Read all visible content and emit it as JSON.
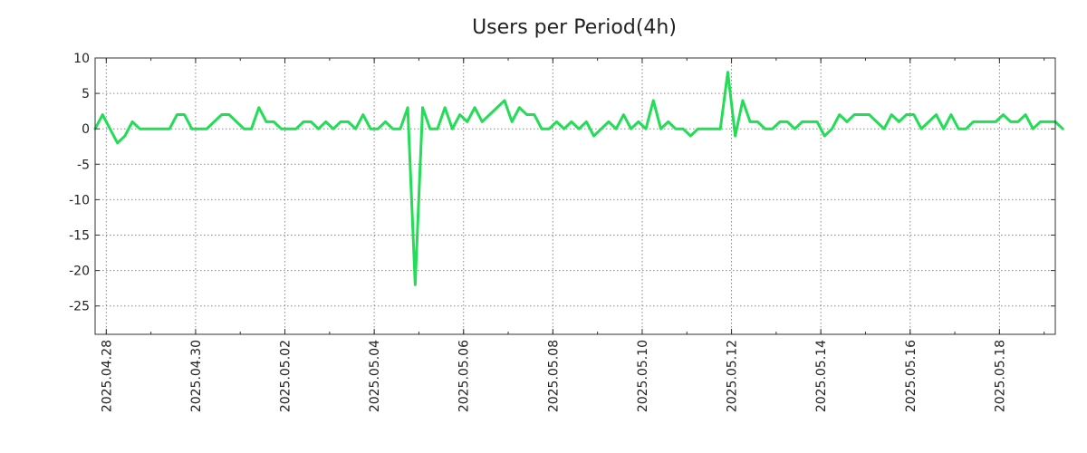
{
  "chart_data": {
    "type": "line",
    "title": "Users per Period(4h)",
    "xlabel": "",
    "ylabel": "",
    "x_start": "2025.04.27 18:00",
    "x_end": "2025.05.19 06:00",
    "period_hours": 4,
    "ylim": [
      -29,
      10
    ],
    "yticks": [
      10,
      5,
      0,
      -5,
      -10,
      -15,
      -20,
      -25
    ],
    "ytick_labels": [
      "10",
      "5",
      "0",
      "-5",
      "-10",
      "-15",
      "-20",
      "-25"
    ],
    "xticks": [
      "2025.04.28",
      "2025.04.30",
      "2025.05.02",
      "2025.05.04",
      "2025.05.06",
      "2025.05.08",
      "2025.05.10",
      "2025.05.12",
      "2025.05.14",
      "2025.05.16",
      "2025.05.18"
    ],
    "grid": true,
    "legend": "none",
    "series": [
      {
        "color": "#22dd55",
        "values": [
          0,
          2,
          0,
          -2,
          -1,
          1,
          0,
          0,
          0,
          0,
          0,
          2,
          2,
          0,
          0,
          0,
          1,
          2,
          2,
          1,
          0,
          0,
          3,
          1,
          1,
          0,
          0,
          0,
          1,
          1,
          0,
          1,
          0,
          1,
          1,
          0,
          2,
          0,
          0,
          1,
          0,
          0,
          3,
          -22,
          3,
          0,
          0,
          3,
          0,
          2,
          1,
          3,
          1,
          2,
          3,
          4,
          1,
          3,
          2,
          2,
          0,
          0,
          1,
          0,
          1,
          0,
          1,
          -1,
          0,
          1,
          0,
          2,
          0,
          1,
          0,
          4,
          0,
          1,
          0,
          0,
          -1,
          0,
          0,
          0,
          0,
          8,
          -1,
          4,
          1,
          1,
          0,
          0,
          1,
          1,
          0,
          1,
          1,
          1,
          -1,
          0,
          2,
          1,
          2,
          2,
          2,
          1,
          0,
          2,
          1,
          2,
          2,
          0,
          1,
          2,
          0,
          2,
          0,
          0,
          1,
          1,
          1,
          1,
          2,
          1,
          1,
          2,
          0,
          1,
          1,
          1,
          0
        ]
      }
    ]
  }
}
